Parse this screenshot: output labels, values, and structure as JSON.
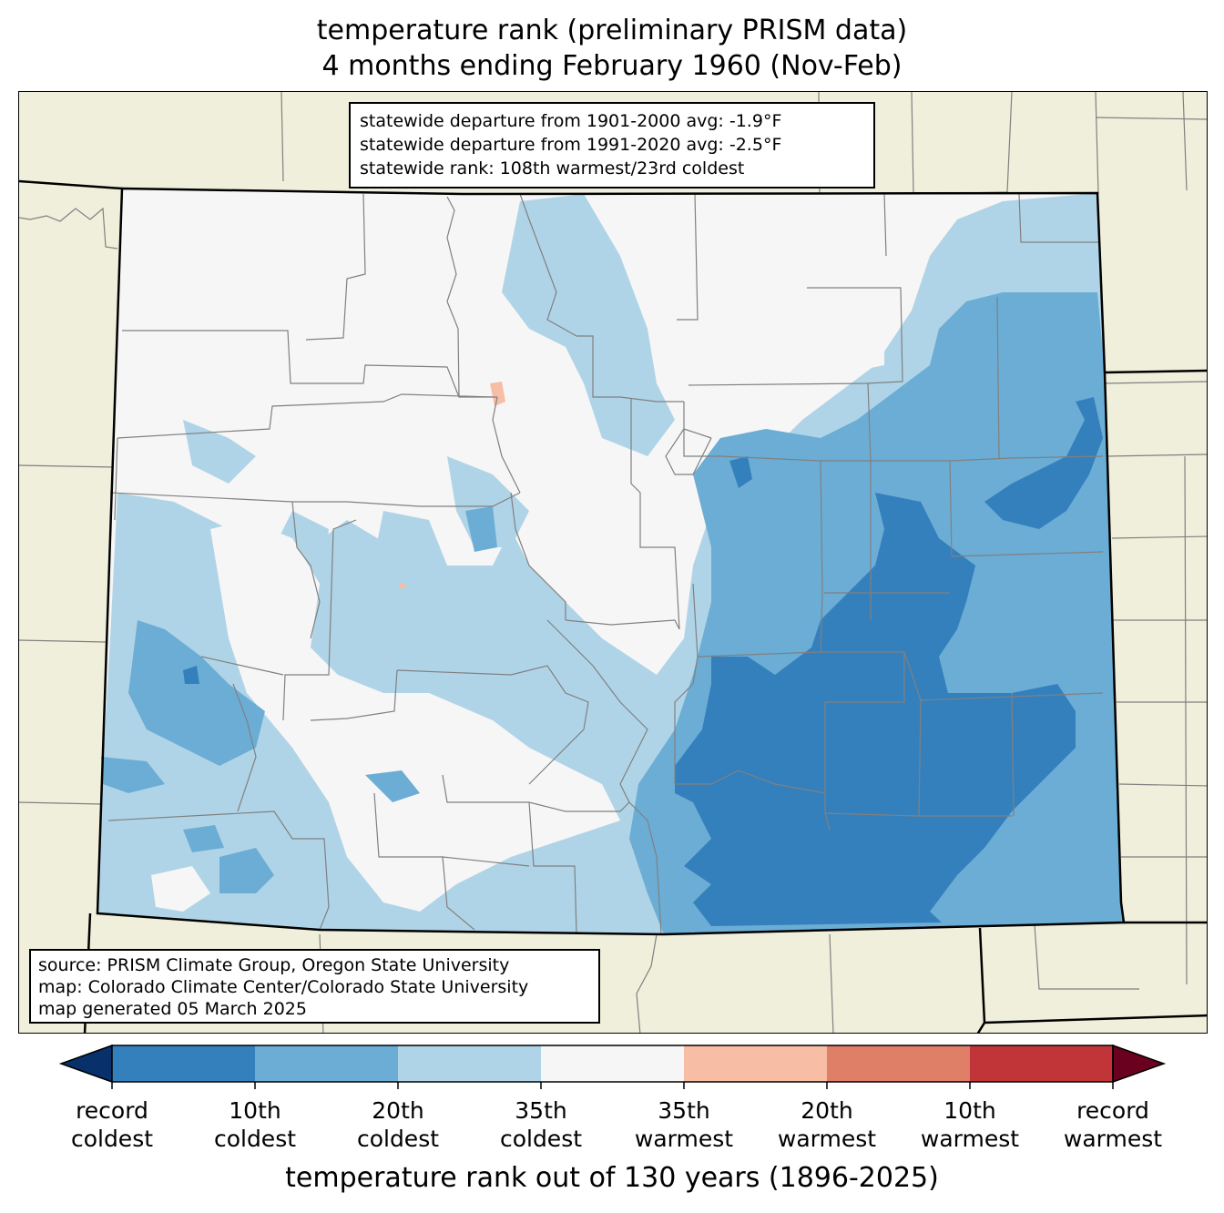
{
  "title_line1": "temperature rank (preliminary PRISM data)",
  "title_line2": "4 months ending February 1960 (Nov-Feb)",
  "stats": [
    "statewide departure from 1901-2000 avg: -1.9°F",
    "statewide departure from 1991-2020 avg: -2.5°F",
    "statewide rank: 108th warmest/23rd coldest"
  ],
  "source": [
    "source: PRISM Climate Group, Oregon State University",
    "map: Colorado Climate Center/Colorado State University",
    "map generated 05 March 2025"
  ],
  "colorbar": {
    "title": "temperature rank out of 130 years (1896-2025)",
    "ticks": [
      {
        "line1": "record",
        "line2": "coldest"
      },
      {
        "line1": "10th",
        "line2": "coldest"
      },
      {
        "line1": "20th",
        "line2": "coldest"
      },
      {
        "line1": "35th",
        "line2": "coldest"
      },
      {
        "line1": "35th",
        "line2": "warmest"
      },
      {
        "line1": "20th",
        "line2": "warmest"
      },
      {
        "line1": "10th",
        "line2": "warmest"
      },
      {
        "line1": "record",
        "line2": "warmest"
      }
    ],
    "colors": {
      "below_record_cold": "#08306b",
      "record_to_10th_coldest": "#3480bd",
      "10th_to_20th_coldest": "#6badd5",
      "20th_to_35th_coldest": "#b0d4e7",
      "near_normal": "#f6f6f6",
      "35th_to_20th_warmest": "#f8bda5",
      "20th_to_10th_warmest": "#e07f67",
      "10th_to_record_warmest": "#c13539",
      "above_record_warm": "#6a011e"
    }
  },
  "map_colors": {
    "background": "#efefdc",
    "state_border": "#000000",
    "county_border": "#808080"
  }
}
